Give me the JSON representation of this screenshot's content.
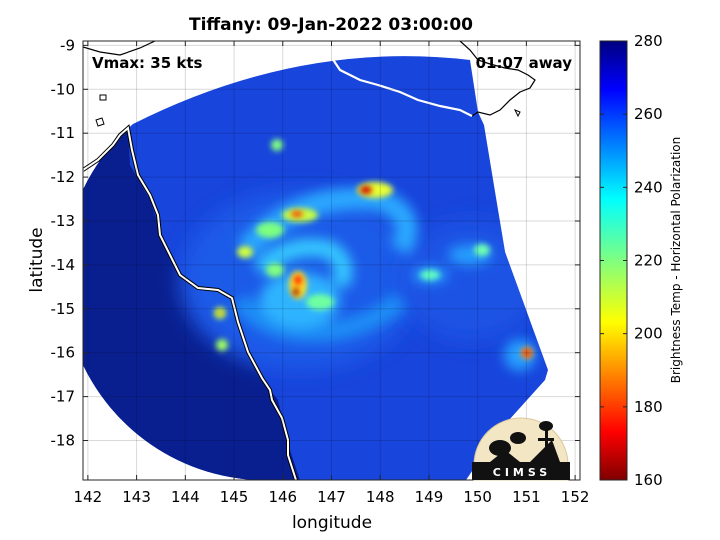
{
  "map": {
    "title": "Tiffany: 09-Jan-2022 03:00:00",
    "annotation_left": "Vmax: 35 kts",
    "annotation_right": "01:07 away",
    "xlabel": "longitude",
    "ylabel": "latitude",
    "xlim": [
      141.9,
      152.1
    ],
    "ylim": [
      -18.9,
      -8.9
    ],
    "x_ticks": [
      "142",
      "143",
      "144",
      "145",
      "146",
      "147",
      "148",
      "149",
      "150",
      "151",
      "152"
    ],
    "x_tick_values": [
      142,
      143,
      144,
      145,
      146,
      147,
      148,
      149,
      150,
      151,
      152
    ],
    "y_ticks": [
      "-9",
      "-10",
      "-11",
      "-12",
      "-13",
      "-14",
      "-15",
      "-16",
      "-17",
      "-18"
    ],
    "y_tick_values": [
      -9,
      -10,
      -11,
      -12,
      -13,
      -14,
      -15,
      -16,
      -17,
      -18
    ],
    "grid": true
  },
  "colorbar": {
    "label": "Brightness Temp - Horizontal Polarization",
    "range": [
      160,
      280
    ],
    "ticks": [
      "280",
      "260",
      "240",
      "220",
      "200",
      "180",
      "160"
    ],
    "tick_values": [
      280,
      260,
      240,
      220,
      200,
      180,
      160
    ],
    "colormap": "jet"
  },
  "logo": {
    "text": "CIMSS"
  },
  "colors": {
    "background_cold": "#0a1f8f",
    "swath_base": "#1540d8",
    "coastline": "#ffffff",
    "coast_outline": "#000000"
  }
}
